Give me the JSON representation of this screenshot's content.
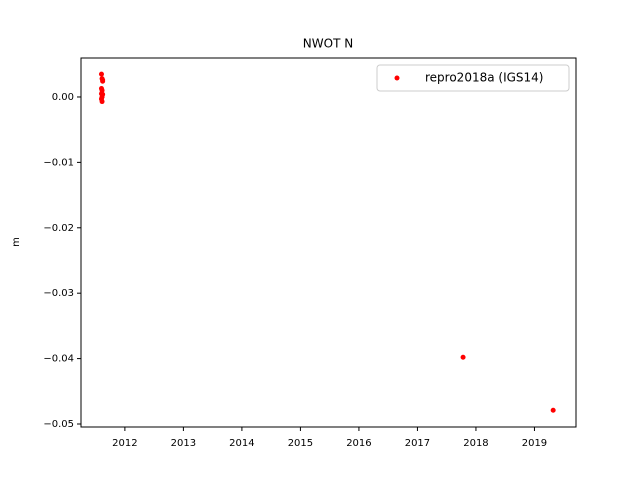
{
  "chart_data": {
    "type": "scatter",
    "title": "NWOT N",
    "ylabel": "m",
    "series": [
      {
        "name": "repro2018a (IGS14)",
        "color": "#ff0000",
        "x": [
          2011.6,
          2011.61,
          2011.62,
          2011.6,
          2011.61,
          2011.6,
          2011.62,
          2011.61,
          2011.6,
          2011.61,
          2011.62,
          2017.78,
          2019.32
        ],
        "values": [
          0.0035,
          0.0028,
          0.0024,
          0.0013,
          0.001,
          0.0005,
          0.0004,
          0.0,
          -0.0003,
          -0.0007,
          0.0026,
          -0.0398,
          -0.0479
        ]
      }
    ],
    "xlim": [
      2011.25,
      2019.71
    ],
    "xticks": [
      2012,
      2013,
      2014,
      2015,
      2016,
      2017,
      2018,
      2019
    ],
    "ylim": [
      -0.05046,
      0.00596
    ],
    "yticks": [
      {
        "value": 0,
        "label": "0.00"
      },
      {
        "value": -0.01,
        "label": "−0.01"
      },
      {
        "value": -0.02,
        "label": "−0.02"
      },
      {
        "value": -0.03,
        "label": "−0.03"
      },
      {
        "value": -0.04,
        "label": "−0.04"
      },
      {
        "value": -0.05,
        "label": "−0.05"
      }
    ],
    "legend": "upper right",
    "grid": false
  }
}
